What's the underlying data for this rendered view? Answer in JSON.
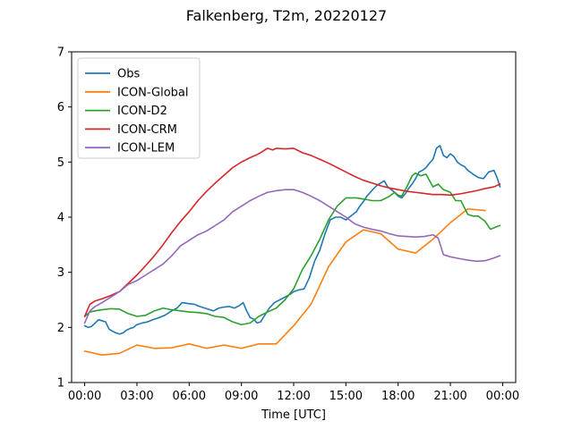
{
  "chart_data": {
    "type": "line",
    "title": "Falkenberg, T2m, 20220127",
    "xlabel": "Time [UTC]",
    "ylabel": "",
    "xlim": [
      -0.75,
      24.75
    ],
    "ylim": [
      1,
      7
    ],
    "x_ticks": [
      {
        "value": 0,
        "label": "00:00"
      },
      {
        "value": 3,
        "label": "03:00"
      },
      {
        "value": 6,
        "label": "06:00"
      },
      {
        "value": 9,
        "label": "09:00"
      },
      {
        "value": 12,
        "label": "12:00"
      },
      {
        "value": 15,
        "label": "15:00"
      },
      {
        "value": 18,
        "label": "18:00"
      },
      {
        "value": 21,
        "label": "21:00"
      },
      {
        "value": 24,
        "label": "00:00"
      }
    ],
    "y_ticks": [
      1,
      2,
      3,
      4,
      5,
      6,
      7
    ],
    "legend_position": "upper-left",
    "grid": false,
    "series": [
      {
        "name": "Obs",
        "color": "#1f77b4",
        "x": [
          0,
          0.2,
          0.4,
          0.6,
          0.8,
          1.0,
          1.2,
          1.4,
          1.6,
          1.8,
          2.0,
          2.2,
          2.4,
          2.6,
          2.8,
          3.0,
          3.3,
          3.6,
          4.0,
          4.3,
          4.6,
          5.0,
          5.3,
          5.6,
          5.8,
          6.0,
          6.3,
          6.6,
          6.9,
          7.2,
          7.4,
          7.7,
          8.0,
          8.3,
          8.6,
          8.9,
          9.1,
          9.3,
          9.5,
          9.7,
          9.9,
          10.1,
          10.3,
          10.6,
          10.9,
          11.2,
          11.5,
          11.8,
          12.0,
          12.3,
          12.6,
          12.9,
          13.2,
          13.5,
          13.8,
          14.1,
          14.4,
          14.7,
          15.0,
          15.2,
          15.4,
          15.6,
          15.8,
          16.0,
          16.2,
          16.4,
          16.6,
          16.8,
          17.0,
          17.2,
          17.4,
          17.6,
          17.8,
          18.0,
          18.2,
          18.4,
          18.6,
          18.8,
          19.0,
          19.2,
          19.4,
          19.6,
          19.8,
          20.0,
          20.2,
          20.4,
          20.6,
          20.8,
          21.0,
          21.2,
          21.4,
          21.6,
          21.8,
          22.0,
          22.3,
          22.6,
          22.9,
          23.2,
          23.5,
          23.7,
          23.85
        ],
        "values": [
          2.03,
          2.0,
          2.02,
          2.08,
          2.14,
          2.12,
          2.1,
          1.97,
          1.93,
          1.9,
          1.88,
          1.9,
          1.95,
          1.98,
          2.0,
          2.05,
          2.08,
          2.1,
          2.15,
          2.18,
          2.22,
          2.3,
          2.35,
          2.45,
          2.44,
          2.43,
          2.42,
          2.38,
          2.35,
          2.32,
          2.3,
          2.35,
          2.37,
          2.38,
          2.35,
          2.4,
          2.45,
          2.3,
          2.18,
          2.15,
          2.08,
          2.1,
          2.2,
          2.35,
          2.45,
          2.5,
          2.55,
          2.6,
          2.65,
          2.68,
          2.7,
          2.9,
          3.2,
          3.4,
          3.7,
          3.95,
          4.0,
          4.0,
          3.95,
          4.0,
          4.05,
          4.1,
          4.2,
          4.28,
          4.38,
          4.45,
          4.52,
          4.58,
          4.62,
          4.66,
          4.55,
          4.5,
          4.45,
          4.38,
          4.35,
          4.42,
          4.52,
          4.6,
          4.7,
          4.82,
          4.85,
          4.9,
          4.98,
          5.05,
          5.25,
          5.3,
          5.12,
          5.08,
          5.15,
          5.1,
          5.0,
          4.95,
          4.92,
          4.85,
          4.78,
          4.72,
          4.7,
          4.82,
          4.85,
          4.7,
          4.55
        ]
      },
      {
        "name": "ICON-Global",
        "color": "#ff7f0e",
        "x": [
          0,
          1,
          2,
          3,
          4,
          5,
          6,
          7,
          8,
          9,
          10,
          11,
          12,
          13,
          14,
          15,
          16,
          17,
          18,
          19,
          20,
          21,
          22,
          23
        ],
        "values": [
          1.57,
          1.5,
          1.53,
          1.68,
          1.62,
          1.63,
          1.7,
          1.62,
          1.68,
          1.62,
          1.7,
          1.7,
          2.03,
          2.42,
          3.1,
          3.55,
          3.77,
          3.7,
          3.42,
          3.35,
          3.6,
          3.9,
          4.15,
          4.12
        ]
      },
      {
        "name": "ICON-D2",
        "color": "#2ca02c",
        "x": [
          0,
          0.3,
          0.6,
          1.0,
          1.5,
          2.0,
          2.5,
          3.0,
          3.5,
          4.0,
          4.5,
          5.0,
          5.5,
          6.0,
          6.5,
          7.0,
          7.5,
          8.0,
          8.5,
          9.0,
          9.5,
          10.0,
          10.5,
          11.0,
          11.5,
          12.0,
          12.5,
          13.0,
          13.5,
          14.0,
          14.5,
          15.0,
          15.3,
          15.6,
          16.0,
          16.5,
          17.0,
          17.5,
          17.8,
          18.0,
          18.2,
          18.5,
          18.8,
          19.0,
          19.3,
          19.6,
          20.0,
          20.3,
          20.6,
          21.0,
          21.3,
          21.6,
          22.0,
          22.3,
          22.6,
          23.0,
          23.3,
          23.6,
          23.85
        ],
        "values": [
          2.2,
          2.28,
          2.3,
          2.32,
          2.34,
          2.33,
          2.25,
          2.2,
          2.22,
          2.3,
          2.35,
          2.32,
          2.3,
          2.28,
          2.27,
          2.25,
          2.2,
          2.18,
          2.1,
          2.05,
          2.08,
          2.2,
          2.28,
          2.35,
          2.5,
          2.7,
          3.05,
          3.3,
          3.6,
          3.95,
          4.2,
          4.35,
          4.35,
          4.35,
          4.33,
          4.3,
          4.3,
          4.38,
          4.45,
          4.4,
          4.38,
          4.55,
          4.75,
          4.8,
          4.75,
          4.78,
          4.55,
          4.6,
          4.5,
          4.45,
          4.3,
          4.3,
          4.05,
          4.02,
          4.02,
          3.92,
          3.78,
          3.82,
          3.85
        ]
      },
      {
        "name": "ICON-CRM",
        "color": "#d62728",
        "x": [
          0,
          0.3,
          0.6,
          1.0,
          1.5,
          2.0,
          2.5,
          3.0,
          3.5,
          4.0,
          4.5,
          5.0,
          5.5,
          6.0,
          6.5,
          7.0,
          7.5,
          8.0,
          8.5,
          9.0,
          9.5,
          10.0,
          10.5,
          10.8,
          11.0,
          11.5,
          12.0,
          12.5,
          13.0,
          13.5,
          14.0,
          14.5,
          15.0,
          15.5,
          16.0,
          16.5,
          17.0,
          17.5,
          18.0,
          18.5,
          19.0,
          19.5,
          20.0,
          20.5,
          21.0,
          21.5,
          22.0,
          22.5,
          23.0,
          23.5,
          23.85
        ],
        "values": [
          2.2,
          2.42,
          2.48,
          2.52,
          2.58,
          2.65,
          2.8,
          2.95,
          3.12,
          3.3,
          3.5,
          3.72,
          3.92,
          4.1,
          4.3,
          4.47,
          4.62,
          4.76,
          4.9,
          5.0,
          5.08,
          5.15,
          5.25,
          5.22,
          5.25,
          5.24,
          5.25,
          5.17,
          5.12,
          5.05,
          4.98,
          4.9,
          4.82,
          4.74,
          4.67,
          4.62,
          4.57,
          4.53,
          4.5,
          4.47,
          4.45,
          4.43,
          4.41,
          4.41,
          4.4,
          4.42,
          4.45,
          4.48,
          4.52,
          4.55,
          4.6
        ]
      },
      {
        "name": "ICON-LEM",
        "color": "#9467bd",
        "x": [
          0,
          0.3,
          0.6,
          1.0,
          1.5,
          2.0,
          2.5,
          3.0,
          3.5,
          4.0,
          4.5,
          5.0,
          5.5,
          6.0,
          6.5,
          7.0,
          7.5,
          8.0,
          8.5,
          9.0,
          9.5,
          10.0,
          10.5,
          11.0,
          11.5,
          12.0,
          12.5,
          13.0,
          13.5,
          14.0,
          14.5,
          15.0,
          15.5,
          16.0,
          16.5,
          17.0,
          17.5,
          18.0,
          18.5,
          19.0,
          19.5,
          20.0,
          20.3,
          20.6,
          21.0,
          21.5,
          22.0,
          22.5,
          23.0,
          23.5,
          23.85
        ],
        "values": [
          2.08,
          2.3,
          2.38,
          2.45,
          2.55,
          2.65,
          2.78,
          2.85,
          2.95,
          3.05,
          3.15,
          3.3,
          3.48,
          3.58,
          3.68,
          3.75,
          3.85,
          3.95,
          4.1,
          4.2,
          4.3,
          4.38,
          4.45,
          4.48,
          4.5,
          4.5,
          4.45,
          4.38,
          4.3,
          4.2,
          4.1,
          4.0,
          3.88,
          3.82,
          3.78,
          3.75,
          3.7,
          3.66,
          3.65,
          3.64,
          3.65,
          3.68,
          3.62,
          3.32,
          3.28,
          3.25,
          3.22,
          3.2,
          3.21,
          3.26,
          3.3
        ]
      }
    ]
  }
}
